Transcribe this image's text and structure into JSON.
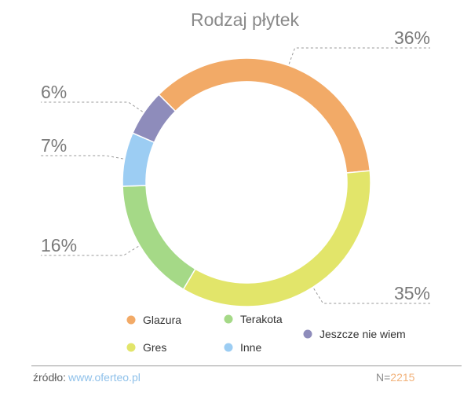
{
  "chart_data": {
    "type": "pie",
    "title": "Rodzaj płytek",
    "categories": [
      "Glazura",
      "Gres",
      "Terakota",
      "Inne",
      "Jeszcze nie wiem"
    ],
    "values": [
      36,
      35,
      16,
      7,
      6
    ],
    "value_labels": [
      "36%",
      "35%",
      "16%",
      "7%",
      "6%"
    ],
    "colors": [
      "#f2aa67",
      "#e2e56a",
      "#a5d987",
      "#9ccdf3",
      "#8e8cbb"
    ],
    "legend": {
      "placement": "bottom",
      "items": [
        {
          "label": "Glazura",
          "color": "#f2aa67"
        },
        {
          "label": "Terakota",
          "color": "#a5d987"
        },
        {
          "label": "Jeszcze nie wiem",
          "color": "#8e8cbb"
        },
        {
          "label": "Gres",
          "color": "#e2e56a"
        },
        {
          "label": "Inne",
          "color": "#9ccdf3"
        }
      ]
    },
    "style": "donut"
  },
  "footer": {
    "source_label": "źródło:",
    "source_link": "www.oferteo.pl",
    "n_label": "N=",
    "n_value": "2215"
  },
  "colors": {
    "title": "#8a8a8a",
    "labels": "#7a7a7a",
    "leader": "#9a9a9a",
    "link": "#8fc1ea",
    "n_value": "#f2b27a"
  }
}
